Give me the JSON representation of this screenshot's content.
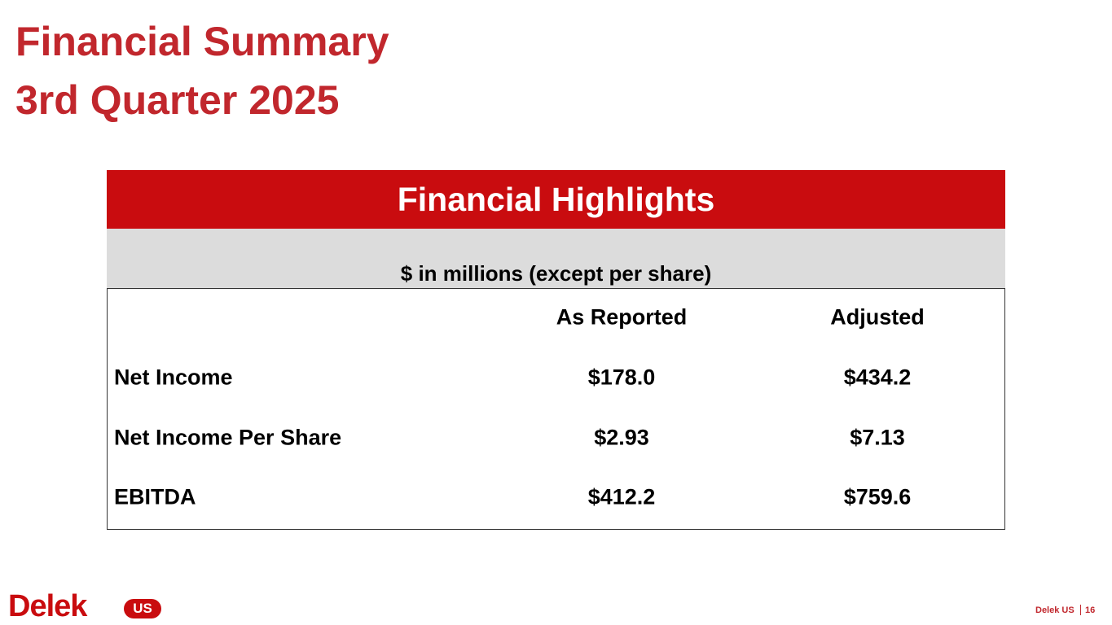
{
  "header": {
    "title_line1": "Financial Summary",
    "title_line2": "3rd Quarter 2025"
  },
  "table": {
    "title": "Financial Highlights",
    "subtitle": "$ in millions (except per share)",
    "columns": [
      "As Reported",
      "Adjusted"
    ],
    "rows": [
      [
        "Net Income",
        "$178.0",
        "$434.2"
      ],
      [
        "Net Income Per Share",
        "$2.93",
        "$7.13"
      ],
      [
        "EBITDA",
        "$412.2",
        "$759.6"
      ]
    ]
  },
  "footer": {
    "logo_main": "Delek",
    "logo_badge": "US",
    "company": "Delek US",
    "page": "16"
  }
}
